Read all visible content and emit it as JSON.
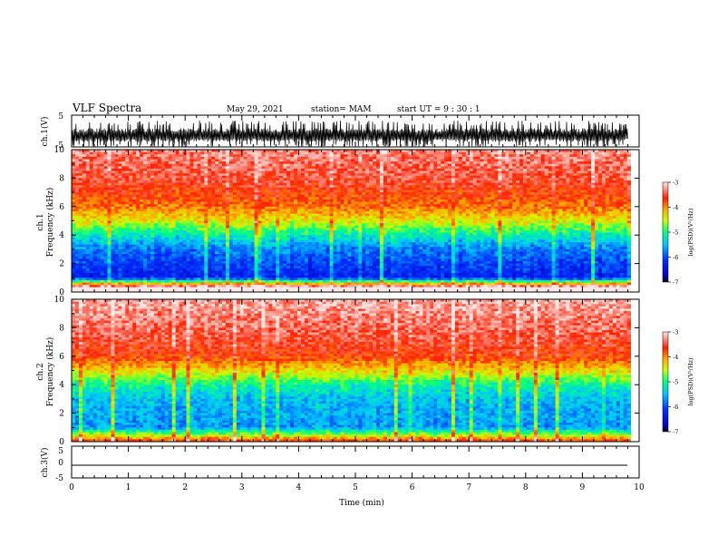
{
  "header": {
    "title": "VLF Spectra",
    "date": "May 29, 2021",
    "station": "station= MAM",
    "start": "start  UT  =   9 : 30 : 1"
  },
  "chart_data": [
    {
      "type": "line",
      "panel": "ch1-waveform",
      "ylabel": "ch.1(V)",
      "ylim": [
        -5,
        5
      ],
      "yticks": [
        "5",
        "-5"
      ],
      "xlim": [
        0,
        10
      ],
      "description_values": {
        "signal_center": -1.5,
        "signal_range": [
          -4.8,
          4.5
        ]
      }
    },
    {
      "type": "heatmap",
      "panel": "ch1-spectrogram",
      "ylabel": [
        "ch.1",
        "Frequency  (kHz)"
      ],
      "ylim": [
        0,
        10
      ],
      "yticks": [
        "0",
        "2",
        "4",
        "6",
        "8",
        "10"
      ],
      "xlim": [
        0,
        9.85
      ],
      "colorbar": {
        "label": "log(PSD)(V²/Hz)",
        "range": [
          -7,
          -3
        ],
        "ticks": [
          "-3",
          "-4",
          "-5",
          "-6",
          "-7"
        ]
      },
      "levels_by_freq_khz": [
        [
          0.4,
          -3.2
        ],
        [
          1.0,
          -6.3
        ],
        [
          2.0,
          -6.1
        ],
        [
          3.0,
          -5.8
        ],
        [
          4.0,
          -5.2
        ],
        [
          5.0,
          -4.4
        ],
        [
          6.0,
          -3.9
        ],
        [
          8.0,
          -3.5
        ],
        [
          10.0,
          -3.3
        ]
      ]
    },
    {
      "type": "heatmap",
      "panel": "ch2-spectrogram",
      "ylabel": [
        "ch.2",
        "Frequency  (kHz)"
      ],
      "ylim": [
        0,
        10
      ],
      "yticks": [
        "0",
        "2",
        "4",
        "6",
        "8",
        "10"
      ],
      "xlim": [
        0,
        9.85
      ],
      "colorbar": {
        "label": "log(PSD)(V²/Hz)",
        "range": [
          -7,
          -3
        ],
        "ticks": [
          "-3",
          "-4",
          "-5",
          "-6",
          "-7"
        ]
      },
      "levels_by_freq_khz": [
        [
          0.2,
          -4.0
        ],
        [
          1.0,
          -5.7
        ],
        [
          2.0,
          -5.6
        ],
        [
          3.0,
          -5.5
        ],
        [
          4.0,
          -5.1
        ],
        [
          5.0,
          -4.3
        ],
        [
          6.0,
          -3.7
        ],
        [
          8.0,
          -3.4
        ],
        [
          10.0,
          -3.2
        ]
      ]
    },
    {
      "type": "line",
      "panel": "ch3-waveform",
      "ylabel": "ch.3(V)",
      "ylim": [
        -5,
        5
      ],
      "yticks": [
        "5",
        "0",
        "-5"
      ],
      "xlim": [
        0,
        10
      ],
      "description_values": {
        "signal_center": -1.8
      }
    }
  ],
  "x_axis": {
    "label": "Time  (min)",
    "ticks": [
      "0",
      "1",
      "2",
      "3",
      "4",
      "5",
      "6",
      "7",
      "8",
      "9",
      "10"
    ],
    "range": [
      0,
      10
    ]
  },
  "colors": {
    "colormap": [
      "#00004a",
      "#0000ff",
      "#00c8ff",
      "#00ff80",
      "#c8ff00",
      "#ffc800",
      "#ff2000",
      "#ffd0d0"
    ],
    "line": "#000000"
  }
}
